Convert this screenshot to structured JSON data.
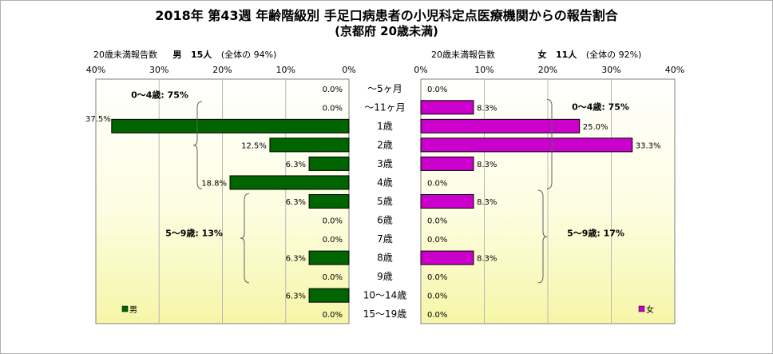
{
  "title": "2018年 第43週 年齢階級別 手足口病患者の小児科定点医療機関からの報告割合",
  "subtitle": "(京都府 20歳未満)",
  "male_header": {
    "label": "20歳未満報告数",
    "sex": "男",
    "count": "15人",
    "share": "(全体の 94%)"
  },
  "female_header": {
    "label": "20歳未満報告数",
    "sex": "女",
    "count": "11人",
    "share": "(全体の 92%)"
  },
  "chart_data": {
    "type": "bar",
    "categories": [
      "～5ヶ月",
      "～11ヶ月",
      "1歳",
      "2歳",
      "3歳",
      "4歳",
      "5歳",
      "6歳",
      "7歳",
      "8歳",
      "9歳",
      "10～14歳",
      "15～19歳"
    ],
    "series": [
      {
        "name": "男",
        "color": "#006400",
        "values": [
          0.0,
          0.0,
          37.5,
          12.5,
          6.3,
          18.8,
          6.3,
          0.0,
          0.0,
          6.3,
          0.0,
          6.3,
          0.0
        ],
        "labels": [
          "0.0%",
          "0.0%",
          "37.5%",
          "12.5%",
          "6.3%",
          "18.8%",
          "6.3%",
          "0.0%",
          "0.0%",
          "6.3%",
          "0.0%",
          "6.3%",
          "0.0%"
        ]
      },
      {
        "name": "女",
        "color": "#cc00cc",
        "values": [
          0.0,
          8.3,
          25.0,
          33.3,
          8.3,
          0.0,
          8.3,
          0.0,
          0.0,
          8.3,
          0.0,
          0.0,
          0.0
        ],
        "labels": [
          "0.0%",
          "8.3%",
          "25.0%",
          "33.3%",
          "8.3%",
          "0.0%",
          "8.3%",
          "0.0%",
          "0.0%",
          "8.3%",
          "0.0%",
          "0.0%",
          "0.0%"
        ]
      }
    ],
    "male_ticks": [
      "40%",
      "30%",
      "20%",
      "10%",
      "0%"
    ],
    "female_ticks": [
      "0%",
      "10%",
      "20%",
      "30%",
      "40%"
    ],
    "xlim": [
      0,
      40
    ],
    "groups": {
      "male": [
        {
          "label": "0～4歳: 75%"
        },
        {
          "label": "5～9歳: 13%"
        }
      ],
      "female": [
        {
          "label": "0～4歳: 75%"
        },
        {
          "label": "5～9歳: 17%"
        }
      ]
    },
    "legend": {
      "male": "男",
      "female": "女"
    },
    "grid": true
  }
}
